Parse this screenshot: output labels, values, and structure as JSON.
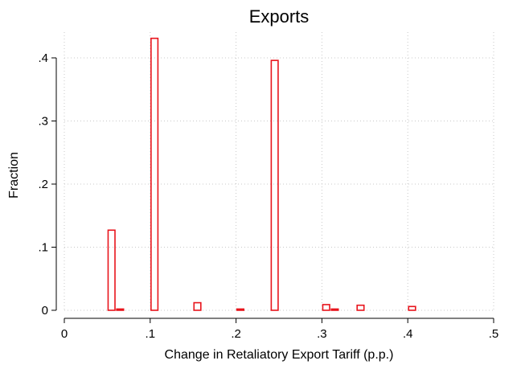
{
  "chart_data": {
    "type": "bar",
    "title": "Exports",
    "xlabel": "Change in Retaliatory Export Tariff (p.p.)",
    "ylabel": "Fraction",
    "xlim": [
      0,
      0.5
    ],
    "ylim": [
      0,
      0.43
    ],
    "x_ticks": [
      {
        "value": 0,
        "label": "0"
      },
      {
        "value": 0.1,
        "label": ".1"
      },
      {
        "value": 0.2,
        "label": ".2"
      },
      {
        "value": 0.3,
        "label": ".3"
      },
      {
        "value": 0.4,
        "label": ".4"
      },
      {
        "value": 0.5,
        "label": ".5"
      }
    ],
    "y_ticks": [
      {
        "value": 0,
        "label": "0"
      },
      {
        "value": 0.1,
        "label": ".1"
      },
      {
        "value": 0.2,
        "label": ".2"
      },
      {
        "value": 0.3,
        "label": ".3"
      },
      {
        "value": 0.4,
        "label": ".4"
      }
    ],
    "bin_width": 0.01,
    "bars": [
      {
        "x": 0.055,
        "value": 0.127
      },
      {
        "x": 0.065,
        "value": 0.002
      },
      {
        "x": 0.105,
        "value": 0.431
      },
      {
        "x": 0.155,
        "value": 0.012
      },
      {
        "x": 0.205,
        "value": 0.002
      },
      {
        "x": 0.245,
        "value": 0.396
      },
      {
        "x": 0.305,
        "value": 0.009
      },
      {
        "x": 0.315,
        "value": 0.002
      },
      {
        "x": 0.345,
        "value": 0.008
      },
      {
        "x": 0.405,
        "value": 0.006
      }
    ],
    "grid": true,
    "bar_color": "#e8141c",
    "grid_color": "#c8c8c8",
    "axis_color": "#000000"
  }
}
